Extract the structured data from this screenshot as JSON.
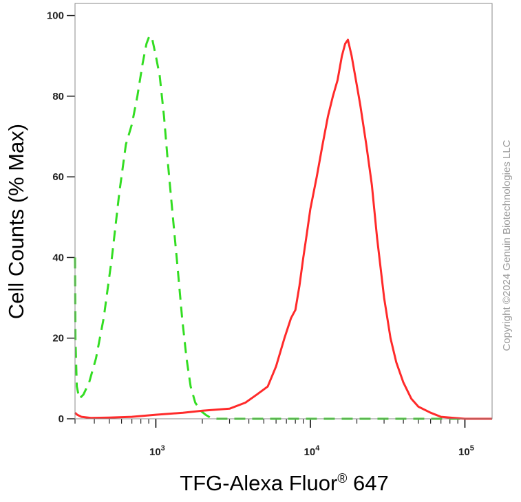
{
  "chart_data": {
    "type": "line",
    "xlabel_main": "TFG-Alexa Fluor",
    "xlabel_sup": "®",
    "xlabel_tail": " 647",
    "ylabel": "Cell Counts (% Max)",
    "xscale": "log",
    "xlim": [
      300,
      150000
    ],
    "ylim": [
      0,
      103
    ],
    "y_ticks": [
      0,
      20,
      40,
      60,
      80,
      100
    ],
    "x_major_ticks": [
      {
        "value": 1000,
        "base": "10",
        "exp": "3"
      },
      {
        "value": 10000,
        "base": "10",
        "exp": "4"
      },
      {
        "value": 100000,
        "base": "10",
        "exp": "5"
      }
    ],
    "grid": false,
    "legend": "none",
    "copyright": "Copyright ©2024 Genuin Biotechnologies LLC",
    "series": [
      {
        "style": "dashed",
        "color": "#33dd22",
        "x": [
          300,
          302,
          308,
          320,
          340,
          370,
          410,
          460,
          520,
          580,
          640,
          700,
          760,
          820,
          870,
          910,
          950,
          1000,
          1060,
          1130,
          1200,
          1290,
          1380,
          1480,
          1580,
          1680,
          1800,
          1950,
          2100,
          2250,
          2500,
          5000,
          20000,
          100000,
          150000
        ],
        "y": [
          40,
          20,
          8,
          5,
          6,
          9,
          15,
          25,
          40,
          56,
          68,
          73,
          80,
          88,
          93,
          95,
          94,
          90,
          85,
          75,
          63,
          50,
          38,
          25,
          15,
          8,
          4,
          2,
          1,
          0.3,
          0,
          0,
          0,
          0,
          0
        ]
      },
      {
        "style": "solid",
        "color": "#ff2a2a",
        "x": [
          300,
          310,
          330,
          380,
          500,
          700,
          1000,
          1500,
          2000,
          3000,
          3800,
          4500,
          5300,
          6000,
          6800,
          7500,
          8000,
          8500,
          9000,
          9500,
          10000,
          11000,
          12000,
          13000,
          14000,
          15000,
          16000,
          16800,
          17500,
          18500,
          19500,
          21000,
          23000,
          25000,
          27000,
          30000,
          33000,
          36000,
          40000,
          45000,
          50000,
          60000,
          70000,
          85000,
          100000,
          150000
        ],
        "y": [
          1.5,
          1,
          0.5,
          0.2,
          0.3,
          0.5,
          1,
          1.5,
          2,
          2.5,
          4,
          6,
          8,
          13,
          20,
          25,
          27,
          33,
          40,
          46,
          52,
          60,
          68,
          75,
          80,
          84,
          90,
          93,
          94,
          90,
          85,
          78,
          68,
          58,
          45,
          30,
          20,
          14,
          9,
          5,
          3,
          1.5,
          0.5,
          0.2,
          0,
          0
        ]
      }
    ]
  }
}
